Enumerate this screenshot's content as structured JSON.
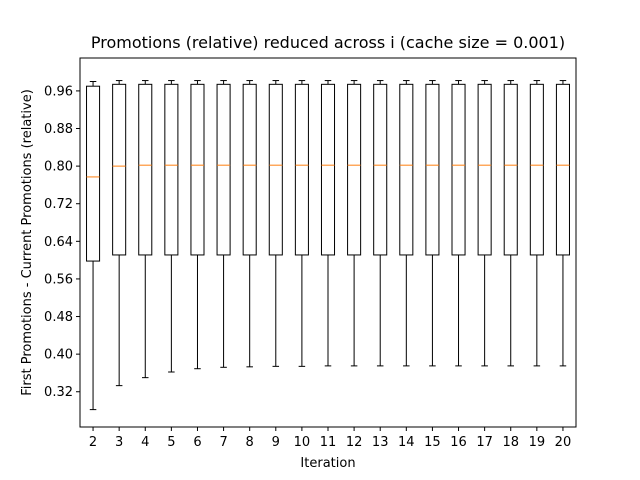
{
  "chart_data": {
    "type": "box",
    "title": "Promotions (relative) reduced across i (cache size = 0.001)",
    "xlabel": "Iteration",
    "ylabel": "First Promotions - Current Promotions (relative)",
    "ylim": [
      0.245,
      1.03
    ],
    "yticks": [
      0.32,
      0.4,
      0.48,
      0.56,
      0.64,
      0.72,
      0.8,
      0.88,
      0.96
    ],
    "ytick_labels": [
      "0.32",
      "0.40",
      "0.48",
      "0.56",
      "0.64",
      "0.72",
      "0.80",
      "0.88",
      "0.96"
    ],
    "categories": [
      "2",
      "3",
      "4",
      "5",
      "6",
      "7",
      "8",
      "9",
      "10",
      "11",
      "12",
      "13",
      "14",
      "15",
      "16",
      "17",
      "18",
      "19",
      "20"
    ],
    "boxes": [
      {
        "whislo": 0.282,
        "q1": 0.598,
        "med": 0.777,
        "q3": 0.97,
        "whishi": 0.98
      },
      {
        "whislo": 0.333,
        "q1": 0.611,
        "med": 0.8,
        "q3": 0.974,
        "whishi": 0.982
      },
      {
        "whislo": 0.35,
        "q1": 0.611,
        "med": 0.802,
        "q3": 0.974,
        "whishi": 0.982
      },
      {
        "whislo": 0.362,
        "q1": 0.611,
        "med": 0.802,
        "q3": 0.974,
        "whishi": 0.982
      },
      {
        "whislo": 0.369,
        "q1": 0.611,
        "med": 0.802,
        "q3": 0.974,
        "whishi": 0.982
      },
      {
        "whislo": 0.372,
        "q1": 0.611,
        "med": 0.802,
        "q3": 0.974,
        "whishi": 0.982
      },
      {
        "whislo": 0.373,
        "q1": 0.611,
        "med": 0.802,
        "q3": 0.974,
        "whishi": 0.982
      },
      {
        "whislo": 0.374,
        "q1": 0.611,
        "med": 0.802,
        "q3": 0.974,
        "whishi": 0.982
      },
      {
        "whislo": 0.374,
        "q1": 0.611,
        "med": 0.802,
        "q3": 0.974,
        "whishi": 0.982
      },
      {
        "whislo": 0.375,
        "q1": 0.611,
        "med": 0.802,
        "q3": 0.974,
        "whishi": 0.982
      },
      {
        "whislo": 0.375,
        "q1": 0.611,
        "med": 0.802,
        "q3": 0.974,
        "whishi": 0.982
      },
      {
        "whislo": 0.375,
        "q1": 0.611,
        "med": 0.802,
        "q3": 0.974,
        "whishi": 0.982
      },
      {
        "whislo": 0.375,
        "q1": 0.611,
        "med": 0.802,
        "q3": 0.974,
        "whishi": 0.982
      },
      {
        "whislo": 0.375,
        "q1": 0.611,
        "med": 0.802,
        "q3": 0.974,
        "whishi": 0.982
      },
      {
        "whislo": 0.375,
        "q1": 0.611,
        "med": 0.802,
        "q3": 0.974,
        "whishi": 0.982
      },
      {
        "whislo": 0.375,
        "q1": 0.611,
        "med": 0.802,
        "q3": 0.974,
        "whishi": 0.982
      },
      {
        "whislo": 0.375,
        "q1": 0.611,
        "med": 0.802,
        "q3": 0.974,
        "whishi": 0.982
      },
      {
        "whislo": 0.375,
        "q1": 0.611,
        "med": 0.802,
        "q3": 0.974,
        "whishi": 0.982
      },
      {
        "whislo": 0.375,
        "q1": 0.611,
        "med": 0.802,
        "q3": 0.974,
        "whishi": 0.982
      }
    ],
    "grid": false,
    "colors": {
      "box": "#000000",
      "median": "#ff7f0e",
      "background": "#ffffff"
    }
  }
}
